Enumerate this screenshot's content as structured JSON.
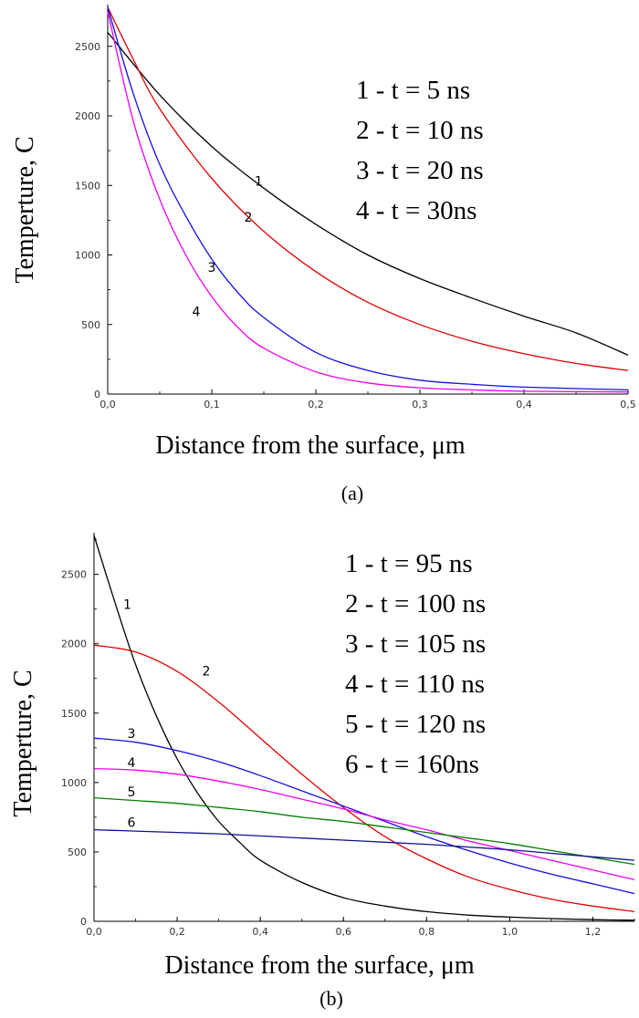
{
  "chart_data": [
    {
      "type": "line",
      "caption": "(a)",
      "xlabel": "Distance from the surface, μm",
      "ylabel": "Temperture, C",
      "xlim": [
        0,
        0.5
      ],
      "ylim": [
        0,
        2800
      ],
      "x_ticks": [
        "0,0",
        "0,1",
        "0,2",
        "0,3",
        "0,4",
        "0,5"
      ],
      "y_ticks": [
        "0",
        "500",
        "1000",
        "1500",
        "2000",
        "2500"
      ],
      "legend": [
        "1 - t = 5 ns",
        "2 - t = 10 ns",
        "3 - t = 20 ns",
        "4 - t = 30ns"
      ],
      "series": [
        {
          "label": "1",
          "color": "#000000",
          "x": [
            0,
            0.05,
            0.1,
            0.15,
            0.2,
            0.25,
            0.3,
            0.35,
            0.4,
            0.45,
            0.5
          ],
          "y": [
            2600,
            2150,
            1780,
            1480,
            1220,
            1000,
            830,
            690,
            560,
            440,
            280
          ]
        },
        {
          "label": "2",
          "color": "#e00000",
          "x": [
            0,
            0.025,
            0.05,
            0.1,
            0.15,
            0.2,
            0.25,
            0.3,
            0.35,
            0.4,
            0.45,
            0.5
          ],
          "y": [
            2780,
            2400,
            2050,
            1550,
            1170,
            880,
            660,
            500,
            380,
            290,
            220,
            170
          ]
        },
        {
          "label": "3",
          "color": "#1010e0",
          "x": [
            0,
            0.025,
            0.05,
            0.075,
            0.1,
            0.125,
            0.15,
            0.2,
            0.25,
            0.3,
            0.35,
            0.4,
            0.5
          ],
          "y": [
            2780,
            2150,
            1650,
            1280,
            970,
            730,
            550,
            300,
            170,
            100,
            70,
            50,
            30
          ]
        },
        {
          "label": "4",
          "color": "#ee00ee",
          "x": [
            0,
            0.025,
            0.05,
            0.075,
            0.1,
            0.125,
            0.15,
            0.2,
            0.25,
            0.3,
            0.35,
            0.4,
            0.5
          ],
          "y": [
            2750,
            1950,
            1400,
            1000,
            700,
            480,
            330,
            160,
            80,
            45,
            30,
            20,
            15
          ]
        }
      ],
      "curve_labels": [
        {
          "text": "1",
          "x": 0.145,
          "y": 1500
        },
        {
          "text": "2",
          "x": 0.135,
          "y": 1240
        },
        {
          "text": "3",
          "x": 0.1,
          "y": 880
        },
        {
          "text": "4",
          "x": 0.085,
          "y": 560
        }
      ]
    },
    {
      "type": "line",
      "caption": "(b)",
      "xlabel": "Distance from the surface, μm",
      "ylabel": "Temperture, C",
      "xlim": [
        0,
        1.3
      ],
      "ylim": [
        0,
        2800
      ],
      "x_ticks": [
        "0,0",
        "0,2",
        "0,4",
        "0,6",
        "0,8",
        "1,0",
        "1,2"
      ],
      "y_ticks": [
        "0",
        "500",
        "1000",
        "1500",
        "2000",
        "2500"
      ],
      "legend": [
        "1 - t = 95 ns",
        "2 - t = 100 ns",
        "3 - t = 105 ns",
        "4 - t = 110 ns",
        "5 - t = 120 ns",
        "6 - t = 160ns"
      ],
      "series": [
        {
          "label": "1",
          "color": "#000000",
          "x": [
            0,
            0.05,
            0.1,
            0.15,
            0.2,
            0.25,
            0.3,
            0.35,
            0.4,
            0.5,
            0.6,
            0.7,
            0.8,
            0.9,
            1.0,
            1.1,
            1.2,
            1.3
          ],
          "y": [
            2780,
            2300,
            1850,
            1480,
            1170,
            920,
            720,
            570,
            440,
            280,
            170,
            110,
            70,
            45,
            30,
            20,
            12,
            8
          ]
        },
        {
          "label": "2",
          "color": "#e00000",
          "x": [
            0,
            0.1,
            0.2,
            0.3,
            0.4,
            0.5,
            0.6,
            0.7,
            0.8,
            0.9,
            1.0,
            1.1,
            1.2,
            1.3
          ],
          "y": [
            1990,
            1940,
            1800,
            1580,
            1320,
            1060,
            820,
            610,
            450,
            320,
            230,
            160,
            110,
            70
          ]
        },
        {
          "label": "3",
          "color": "#1010e0",
          "x": [
            0,
            0.1,
            0.2,
            0.3,
            0.4,
            0.5,
            0.6,
            0.7,
            0.8,
            0.9,
            1.0,
            1.1,
            1.2,
            1.3
          ],
          "y": [
            1320,
            1290,
            1230,
            1150,
            1050,
            940,
            830,
            720,
            610,
            510,
            420,
            340,
            270,
            200
          ]
        },
        {
          "label": "4",
          "color": "#ee00ee",
          "x": [
            0,
            0.1,
            0.2,
            0.3,
            0.4,
            0.5,
            0.6,
            0.7,
            0.8,
            0.9,
            1.0,
            1.1,
            1.2,
            1.3
          ],
          "y": [
            1100,
            1090,
            1060,
            1010,
            950,
            880,
            810,
            730,
            660,
            580,
            510,
            440,
            370,
            300
          ]
        },
        {
          "label": "5",
          "color": "#008000",
          "x": [
            0,
            0.1,
            0.2,
            0.3,
            0.4,
            0.5,
            0.6,
            0.7,
            0.8,
            0.9,
            1.0,
            1.1,
            1.2,
            1.3
          ],
          "y": [
            890,
            870,
            850,
            820,
            790,
            750,
            720,
            680,
            640,
            600,
            560,
            510,
            460,
            410
          ]
        },
        {
          "label": "6",
          "color": "#101090",
          "x": [
            0,
            0.1,
            0.2,
            0.3,
            0.4,
            0.5,
            0.6,
            0.7,
            0.8,
            0.9,
            1.0,
            1.1,
            1.2,
            1.3
          ],
          "y": [
            660,
            650,
            640,
            630,
            615,
            600,
            585,
            570,
            555,
            535,
            515,
            490,
            465,
            440
          ]
        }
      ],
      "curve_labels": [
        {
          "text": "1",
          "x": 0.08,
          "y": 2250
        },
        {
          "text": "2",
          "x": 0.27,
          "y": 1770
        },
        {
          "text": "3",
          "x": 0.09,
          "y": 1320
        },
        {
          "text": "4",
          "x": 0.09,
          "y": 1110
        },
        {
          "text": "5",
          "x": 0.09,
          "y": 900
        },
        {
          "text": "6",
          "x": 0.09,
          "y": 680
        }
      ]
    }
  ]
}
